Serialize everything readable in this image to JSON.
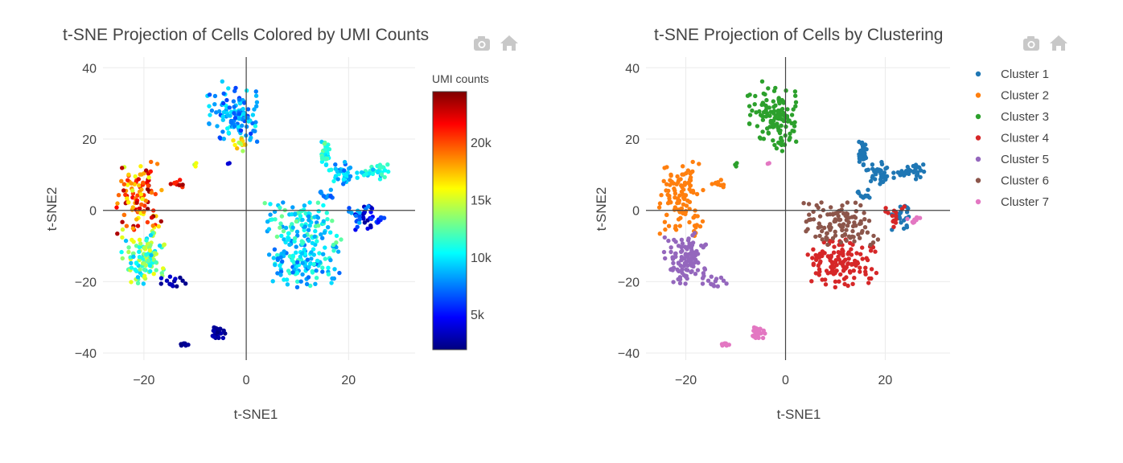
{
  "charts": [
    {
      "chart_data": {
        "type": "scatter",
        "title": "t-SNE Projection of Cells Colored by UMI Counts",
        "xlabel": "t-SNE1",
        "ylabel": "t-SNE2",
        "xlim": [
          -28,
          33
        ],
        "ylim": [
          -42,
          43
        ],
        "xticks": [
          -20,
          0,
          20
        ],
        "xtick_labels": [
          "−20",
          "0",
          "20"
        ],
        "yticks": [
          -40,
          -20,
          0,
          20,
          40
        ],
        "ytick_labels": [
          "−40",
          "−20",
          "0",
          "20",
          "40"
        ],
        "grid": true,
        "zeroline": true,
        "colorbar": {
          "title": "UMI counts",
          "min": 2000,
          "max": 24500,
          "ticks": [
            5000,
            10000,
            15000,
            20000
          ],
          "tick_labels": [
            "5k",
            "10k",
            "15k",
            "20k"
          ],
          "colorscale": [
            "#00007f",
            "#0000ff",
            "#007fff",
            "#00ffff",
            "#7fff7f",
            "#ffff00",
            "#ff7f00",
            "#ff0000",
            "#7f0000"
          ]
        },
        "colored_by": "umi",
        "icons": [
          "camera-icon",
          "home-icon"
        ]
      }
    },
    {
      "chart_data": {
        "type": "scatter",
        "title": "t-SNE Projection of Cells by Clustering",
        "xlabel": "t-SNE1",
        "ylabel": "t-SNE2",
        "xlim": [
          -28,
          33
        ],
        "ylim": [
          -42,
          43
        ],
        "xticks": [
          -20,
          0,
          20
        ],
        "xtick_labels": [
          "−20",
          "0",
          "20"
        ],
        "yticks": [
          -40,
          -20,
          0,
          20,
          40
        ],
        "ytick_labels": [
          "−40",
          "−20",
          "0",
          "20",
          "40"
        ],
        "grid": true,
        "zeroline": true,
        "colored_by": "cluster",
        "legend_position": "right",
        "series": [
          {
            "name": "Cluster 1",
            "color": "#1f77b4"
          },
          {
            "name": "Cluster 2",
            "color": "#ff7f0e"
          },
          {
            "name": "Cluster 3",
            "color": "#2ca02c"
          },
          {
            "name": "Cluster 4",
            "color": "#d62728"
          },
          {
            "name": "Cluster 5",
            "color": "#9467bd"
          },
          {
            "name": "Cluster 6",
            "color": "#8c564b"
          },
          {
            "name": "Cluster 7",
            "color": "#e377c2"
          }
        ],
        "icons": [
          "camera-icon",
          "home-icon"
        ]
      }
    }
  ],
  "cell_groups": [
    {
      "cluster": 1,
      "count": 35,
      "x": [
        14.5,
        16.5
      ],
      "y": [
        12,
        20
      ],
      "umi": [
        9000,
        13000
      ]
    },
    {
      "cluster": 1,
      "count": 40,
      "x": [
        16,
        22
      ],
      "y": [
        7,
        14
      ],
      "umi": [
        7000,
        11000
      ]
    },
    {
      "cluster": 1,
      "count": 30,
      "x": [
        22,
        28.5
      ],
      "y": [
        8,
        13
      ],
      "umi": [
        8000,
        12000
      ]
    },
    {
      "cluster": 1,
      "count": 12,
      "x": [
        14,
        18
      ],
      "y": [
        2,
        6
      ],
      "umi": [
        6000,
        9000
      ]
    },
    {
      "cluster": 1,
      "count": 22,
      "x": [
        21,
        26
      ],
      "y": [
        -6,
        3
      ],
      "umi": [
        2500,
        5000
      ]
    },
    {
      "cluster": 2,
      "count": 110,
      "x": [
        -26,
        -16
      ],
      "y": [
        -7,
        15
      ],
      "umi": [
        15000,
        24500
      ]
    },
    {
      "cluster": 2,
      "count": 10,
      "x": [
        -15,
        -12
      ],
      "y": [
        6,
        9
      ],
      "umi": [
        20000,
        24000
      ]
    },
    {
      "cluster": 2,
      "count": 8,
      "x": [
        -19,
        -17
      ],
      "y": [
        -8,
        -4
      ],
      "umi": [
        14000,
        19000
      ]
    },
    {
      "cluster": 3,
      "count": 120,
      "x": [
        -8,
        3
      ],
      "y": [
        18,
        37
      ],
      "umi": [
        6000,
        11000
      ]
    },
    {
      "cluster": 3,
      "count": 14,
      "x": [
        -3,
        0.5
      ],
      "y": [
        16,
        22
      ],
      "umi": [
        13000,
        18000
      ]
    },
    {
      "cluster": 3,
      "count": 3,
      "x": [
        -11,
        -9
      ],
      "y": [
        12,
        14
      ],
      "umi": [
        14000,
        16000
      ]
    },
    {
      "cluster": 4,
      "count": 130,
      "x": [
        3,
        19
      ],
      "y": [
        -23,
        -7
      ],
      "umi": [
        7000,
        12000
      ]
    },
    {
      "cluster": 4,
      "count": 14,
      "x": [
        19,
        25
      ],
      "y": [
        -6,
        2
      ],
      "umi": [
        6000,
        9000
      ]
    },
    {
      "cluster": 5,
      "count": 110,
      "x": [
        -25,
        -15
      ],
      "y": [
        -21,
        -6
      ],
      "umi": [
        9000,
        16000
      ]
    },
    {
      "cluster": 5,
      "count": 14,
      "x": [
        -18,
        -11
      ],
      "y": [
        -22,
        -18
      ],
      "umi": [
        2200,
        4000
      ]
    },
    {
      "cluster": 6,
      "count": 110,
      "x": [
        3,
        19
      ],
      "y": [
        -10,
        3
      ],
      "umi": [
        8000,
        13000
      ]
    },
    {
      "cluster": 7,
      "count": 12,
      "x": [
        -13.5,
        -10.5
      ],
      "y": [
        -38,
        -37
      ],
      "umi": [
        2000,
        3000
      ]
    },
    {
      "cluster": 7,
      "count": 30,
      "x": [
        -7,
        -4
      ],
      "y": [
        -36.5,
        -32
      ],
      "umi": [
        2000,
        3200
      ]
    },
    {
      "cluster": 7,
      "count": 10,
      "x": [
        24,
        28
      ],
      "y": [
        -4,
        -1
      ],
      "umi": [
        5000,
        7000
      ]
    },
    {
      "cluster": 7,
      "count": 2,
      "x": [
        -4,
        -3
      ],
      "y": [
        12,
        14
      ],
      "umi": [
        3000,
        4000
      ]
    }
  ]
}
